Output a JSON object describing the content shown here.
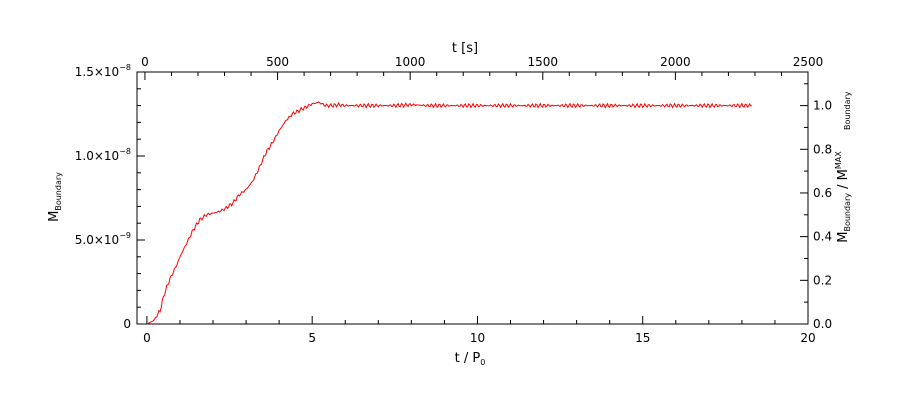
{
  "chart_data": {
    "type": "line",
    "title": "",
    "xlabel_bottom": {
      "main": "t / P",
      "sub": "0"
    },
    "xlabel_top": "t [s]",
    "ylabel_left": {
      "main": "M",
      "sub": "Boundary"
    },
    "ylabel_right": {
      "main1": "M",
      "sub1": "Boundary",
      "sep": " / ",
      "main2": "M",
      "sub2": "Boundary",
      "sup2": "MAX"
    },
    "xlim": [
      -0.3,
      20
    ],
    "ylim": [
      0,
      1.5e-08
    ],
    "x_ticks_bottom": [
      {
        "value": 0,
        "label": "0"
      },
      {
        "value": 5,
        "label": "5"
      },
      {
        "value": 10,
        "label": "10"
      },
      {
        "value": 15,
        "label": "15"
      },
      {
        "value": 20,
        "label": "20"
      }
    ],
    "x_top_lim": [
      -30,
      2500
    ],
    "x_ticks_top": [
      {
        "value": 0,
        "label": "0"
      },
      {
        "value": 500,
        "label": "500"
      },
      {
        "value": 1000,
        "label": "1000"
      },
      {
        "value": 1500,
        "label": "1500"
      },
      {
        "value": 2000,
        "label": "2000"
      },
      {
        "value": 2500,
        "label": "2500"
      }
    ],
    "y_ticks_left": [
      {
        "value": 0,
        "label": "0",
        "exp": ""
      },
      {
        "value": 5e-09,
        "label": "5.0×10",
        "exp": "−9"
      },
      {
        "value": 1e-08,
        "label": "1.0×10",
        "exp": "−8"
      },
      {
        "value": 1.5e-08,
        "label": "1.5×10",
        "exp": "−8"
      }
    ],
    "y_right_max": 1.3e-08,
    "y_ticks_right": [
      {
        "value": 0.0,
        "label": "0.0"
      },
      {
        "value": 0.2,
        "label": "0.2"
      },
      {
        "value": 0.4,
        "label": "0.4"
      },
      {
        "value": 0.6,
        "label": "0.6"
      },
      {
        "value": 0.8,
        "label": "0.8"
      },
      {
        "value": 1.0,
        "label": "1.0"
      }
    ],
    "series": [
      {
        "color": "#ff0000",
        "x": [
          0,
          0.2,
          0.4,
          0.5,
          0.6,
          0.7,
          0.8,
          0.9,
          1.0,
          1.2,
          1.4,
          1.6,
          1.8,
          2.0,
          2.2,
          2.4,
          2.6,
          2.8,
          3.0,
          3.2,
          3.4,
          3.6,
          3.8,
          4.0,
          4.2,
          4.4,
          4.6,
          4.8,
          5.0,
          5.2,
          5.4,
          5.6,
          5.8,
          6.0,
          6.5,
          7.0,
          7.5,
          8.0,
          8.5,
          9.0,
          10.0,
          11.0,
          12.0,
          13.0,
          14.0,
          15.0,
          16.0,
          17.0,
          18.0,
          18.3
        ],
        "y": [
          0,
          2e-10,
          8e-10,
          1.6e-09,
          2.2e-09,
          2.7e-09,
          3.1e-09,
          3.5e-09,
          4e-09,
          4.8e-09,
          5.6e-09,
          6.2e-09,
          6.5e-09,
          6.6e-09,
          6.7e-09,
          6.9e-09,
          7.2e-09,
          7.7e-09,
          8e-09,
          8.5e-09,
          9.3e-09,
          1.02e-08,
          1.08e-08,
          1.15e-08,
          1.21e-08,
          1.25e-08,
          1.27e-08,
          1.29e-08,
          1.31e-08,
          1.32e-08,
          1.3e-08,
          1.3e-08,
          1.305e-08,
          1.3e-08,
          1.3e-08,
          1.3e-08,
          1.3e-08,
          1.305e-08,
          1.3e-08,
          1.3e-08,
          1.3e-08,
          1.3e-08,
          1.3e-08,
          1.3e-08,
          1.3e-08,
          1.3e-08,
          1.3e-08,
          1.3e-08,
          1.3e-08,
          1.3e-08
        ]
      }
    ],
    "grid": false,
    "legend": "none"
  }
}
